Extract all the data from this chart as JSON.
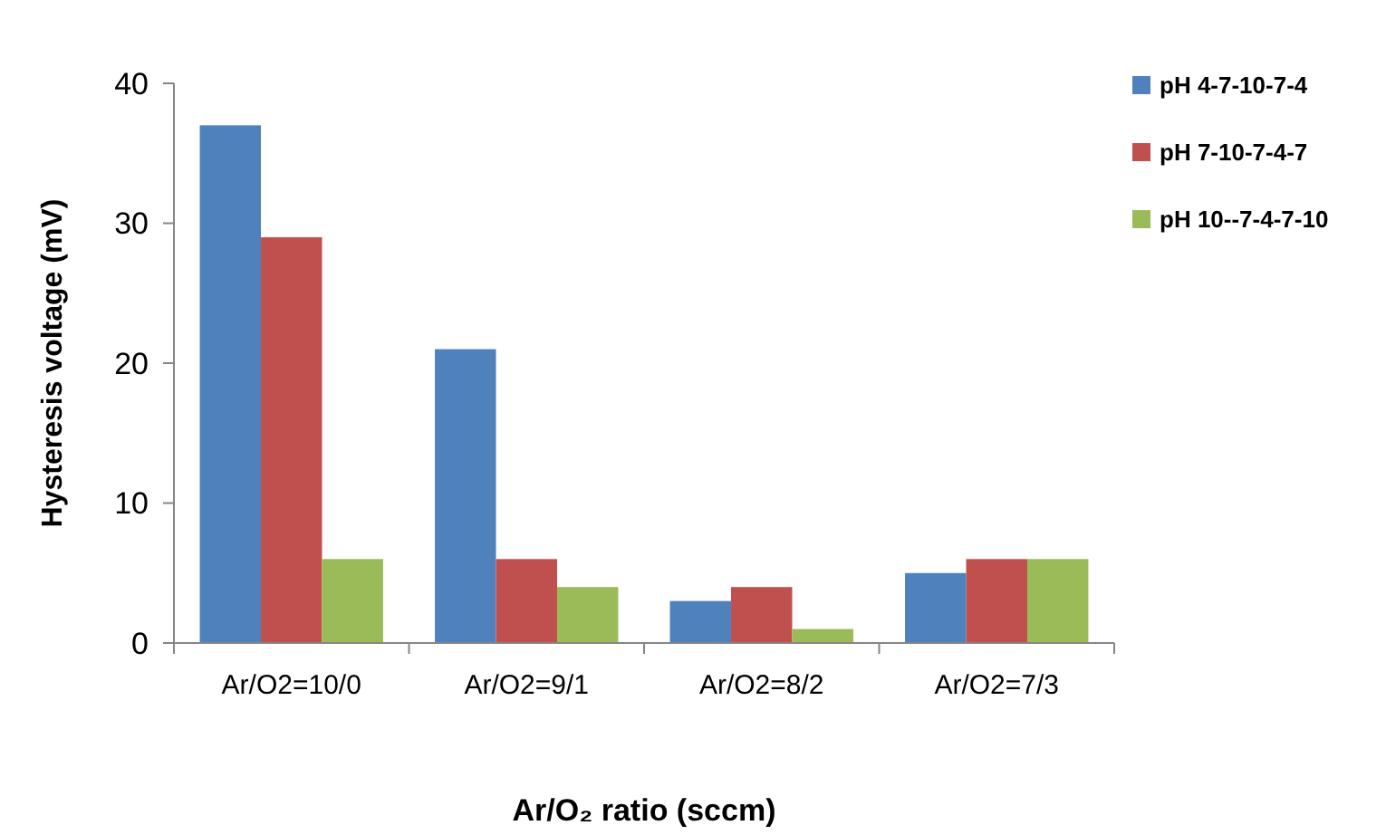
{
  "chart_data": {
    "type": "bar",
    "xlabel": "Ar/O₂ ratio (sccm)",
    "ylabel": "Hysteresis voltage (mV)",
    "categories": [
      "Ar/O2=10/0",
      "Ar/O2=9/1",
      "Ar/O2=8/2",
      "Ar/O2=7/3"
    ],
    "series": [
      {
        "name": "pH 4-7-10-7-4",
        "color": "#4f81bd",
        "values": [
          37,
          21,
          3,
          5
        ]
      },
      {
        "name": "pH 7-10-7-4-7",
        "color": "#c0504d",
        "values": [
          29,
          6,
          4,
          6
        ]
      },
      {
        "name": "pH 10--7-4-7-10",
        "color": "#9bbb59",
        "values": [
          6,
          4,
          1,
          6
        ]
      }
    ],
    "ylim": [
      0,
      40
    ],
    "yticks": [
      0,
      10,
      20,
      30,
      40
    ],
    "legend": "top right"
  }
}
